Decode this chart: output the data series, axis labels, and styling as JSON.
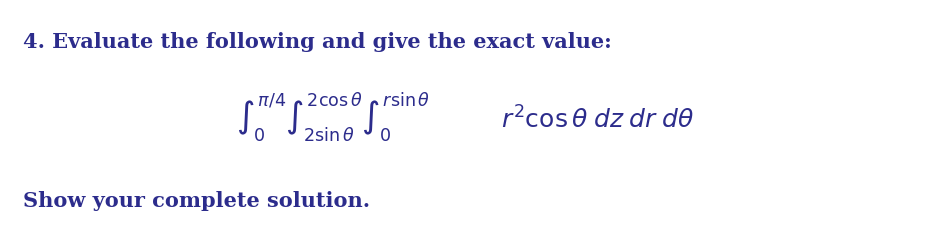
{
  "title_text": "4. Evaluate the following and give the exact value:",
  "footer_text": "Show your complete solution.",
  "title_fontsize": 15,
  "footer_fontsize": 15,
  "text_color": "#2c2c8c",
  "bg_color": "#ffffff",
  "integral_fontsize": 13,
  "figwidth": 9.3,
  "figheight": 2.43,
  "dpi": 100
}
